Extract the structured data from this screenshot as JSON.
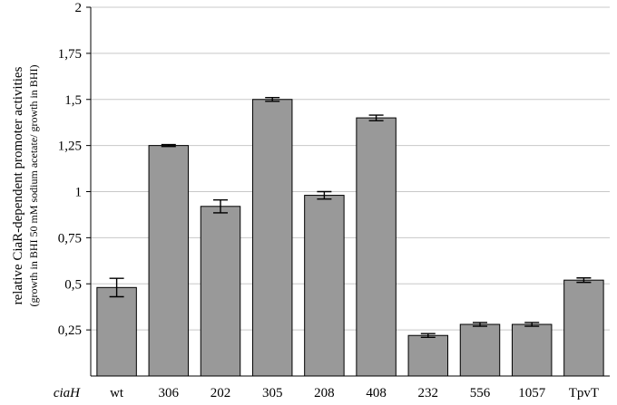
{
  "chart_data": {
    "type": "bar",
    "ylabel": "relative CiaR-dependent promoter activities",
    "ylabel_sub": "(growth in BHI 50 mM sodium acetate/ growth in BHI)",
    "xlabel": "ciaH",
    "categories": [
      "wt",
      "306",
      "202",
      "305",
      "208",
      "408",
      "232",
      "556",
      "1057",
      "TpvT"
    ],
    "values": [
      0.48,
      1.25,
      0.92,
      1.5,
      0.98,
      1.4,
      0.22,
      0.28,
      0.28,
      0.52
    ],
    "errors": [
      0.05,
      0.005,
      0.035,
      0.01,
      0.02,
      0.015,
      0.01,
      0.01,
      0.01,
      0.012
    ],
    "ylim": [
      0,
      2
    ],
    "yticks": [
      0.25,
      0.5,
      0.75,
      1,
      1.25,
      1.5,
      1.75,
      2
    ],
    "ytick_labels": [
      "0,25",
      "0,5",
      "0,75",
      "1",
      "1,25",
      "1,5",
      "1,75",
      "2"
    ],
    "grid": true,
    "legend": "none",
    "colors": {
      "bar": "#999999",
      "bar_stroke": "#000000",
      "grid": "#c8c8c8",
      "axis": "#000000"
    }
  }
}
